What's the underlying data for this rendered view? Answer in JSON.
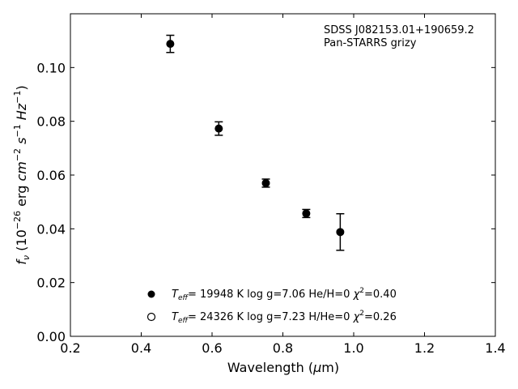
{
  "chart_data": {
    "type": "scatter",
    "annotation": [
      "SDSS J082153.01+190659.2",
      "Pan-STARRS grizy"
    ],
    "xlim": [
      0.2,
      1.4
    ],
    "ylim": [
      0.0,
      0.12
    ],
    "x_ticks": [
      0.2,
      0.4,
      0.6,
      0.8,
      1.0,
      1.2,
      1.4
    ],
    "x_tick_labels": [
      "0.2",
      "0.4",
      "0.6",
      "0.8",
      "1.0",
      "1.2",
      "1.4"
    ],
    "y_ticks": [
      0.0,
      0.02,
      0.04,
      0.06,
      0.08,
      0.1
    ],
    "y_tick_labels": [
      "0.00",
      "0.02",
      "0.04",
      "0.06",
      "0.08",
      "0.10"
    ],
    "grid": false,
    "legend_placement": "lower-center",
    "series": [
      {
        "label": "T_eff= 19948 K  log g=7.06  He/H=0  χ²=0.40",
        "marker": "filled-circle",
        "color": "#000000",
        "x": [
          0.482,
          0.619,
          0.752,
          0.866,
          0.962
        ],
        "y": [
          0.1088,
          0.0773,
          0.057,
          0.0457,
          0.0388
        ],
        "yerr": [
          0.0032,
          0.0025,
          0.0015,
          0.0015,
          0.0068
        ]
      },
      {
        "label": "T_eff= 24326 K  log g=7.23  H/He=0  χ²=0.26",
        "marker": "open-circle",
        "color": "#000000",
        "x": [],
        "y": []
      }
    ]
  }
}
